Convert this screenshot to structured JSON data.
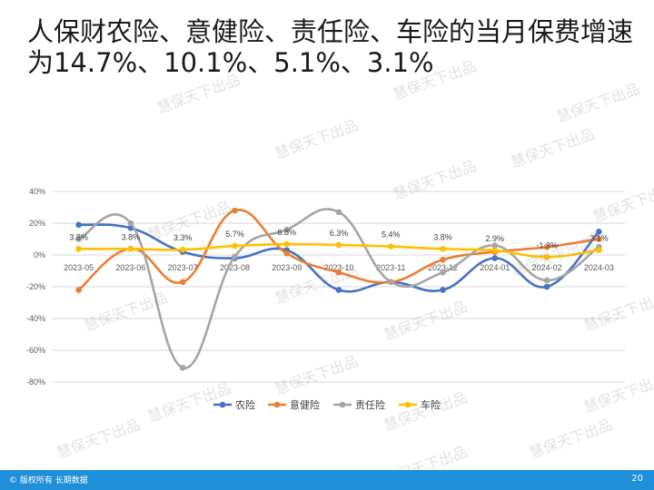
{
  "title": "人保财农险、意健险、责任险、车险的当月保费增速为14.7%、10.1%、5.1%、3.1%",
  "watermark": "慧保天下出品",
  "footer": {
    "copyright": "© 版权所有 长期数据",
    "page_number": "20"
  },
  "chart_data": {
    "type": "line",
    "x": [
      "2023-05",
      "2023-06",
      "2023-07",
      "2023-08",
      "2023-09",
      "2023-10",
      "2023-11",
      "2023-12",
      "2024-01",
      "2024-02",
      "2024-03"
    ],
    "ylim": [
      -80,
      40
    ],
    "yticks": [
      "40%",
      "20%",
      "0%",
      "-20%",
      "-40%",
      "-60%",
      "-80%"
    ],
    "grid": true,
    "legend_position": "bottom",
    "series": [
      {
        "name": "农险",
        "color": "#4472c4",
        "values": [
          19,
          17,
          2,
          -2,
          3,
          -22,
          -17,
          -22,
          -2,
          -20,
          14.7
        ]
      },
      {
        "name": "意健险",
        "color": "#ed7d31",
        "values": [
          -22,
          4,
          -17,
          28,
          1,
          -11,
          -17,
          -3,
          2,
          5,
          10.1
        ]
      },
      {
        "name": "责任险",
        "color": "#a5a5a5",
        "values": [
          10,
          20,
          -71,
          -1,
          16,
          27,
          -17,
          -11,
          6,
          -16,
          5.1
        ]
      },
      {
        "name": "车险",
        "color": "#ffc000",
        "values": [
          3.8,
          3.8,
          3.3,
          5.7,
          6.8,
          6.3,
          5.4,
          3.8,
          2.9,
          -1.3,
          3.1
        ],
        "data_labels": [
          "3.8%",
          "3.8%",
          "3.3%",
          "5.7%",
          "6.8%",
          "6.3%",
          "5.4%",
          "3.8%",
          "2.9%",
          "-1.3%",
          "3.1%"
        ]
      }
    ]
  }
}
